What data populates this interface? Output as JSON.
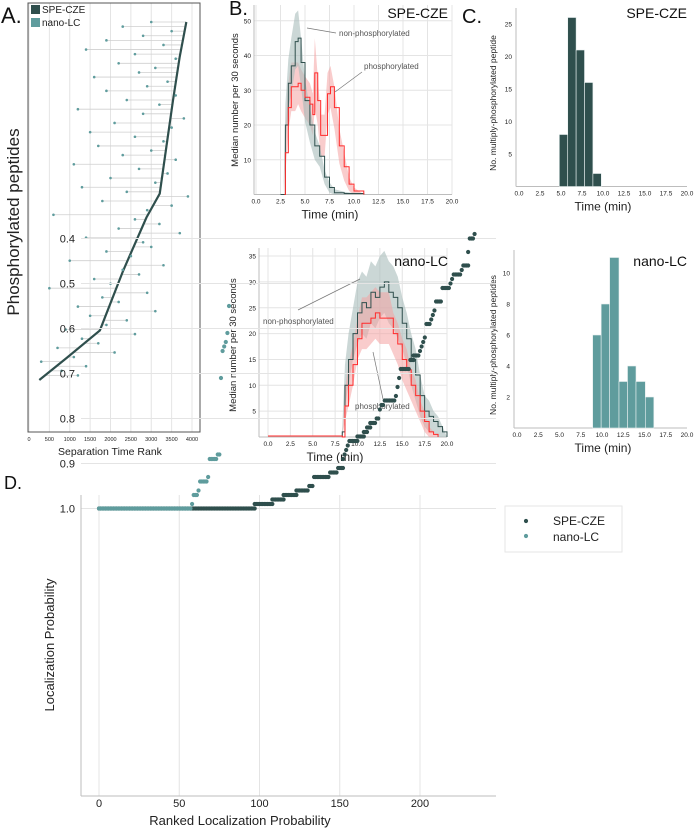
{
  "colors": {
    "spe_cze": "#2f4f4d",
    "nano_lc": "#5f9c9d",
    "phos_line": "#ff2a2a",
    "phos_band": "#f4a3a3",
    "nonphos_band": "#a9bcbb"
  },
  "chart_data": [
    {
      "id": "A",
      "type": "scatter",
      "panel_label": "A.",
      "xlabel": "Separation Time Rank",
      "ylabel": "Phosphorylated peptides",
      "xlim": [
        0,
        4200
      ],
      "xticks": [
        0,
        500,
        1000,
        1500,
        2000,
        2500,
        3000,
        3500,
        4000
      ],
      "legend": [
        {
          "name": "SPE-CZE"
        },
        {
          "name": "nano-LC"
        }
      ],
      "spe_cze_curve": {
        "peptide_index": [
          0,
          24,
          54,
          119,
          177,
          203,
          254,
          305,
          352,
          390
        ],
        "rank": [
          253,
          922,
          1739,
          2310,
          2882,
          3208,
          3371,
          3535,
          3698,
          3861
        ]
      },
      "nano_lc": {
        "peptide_index": [
          5,
          10,
          15,
          20,
          25,
          30,
          35,
          40,
          45,
          50,
          55,
          60,
          65,
          70,
          75,
          80,
          85,
          90,
          95,
          100,
          105,
          110,
          115,
          120,
          125,
          130,
          135,
          140,
          145,
          150,
          155,
          160,
          165,
          170,
          175,
          180,
          185,
          190,
          195,
          200,
          205,
          210,
          215,
          220,
          225,
          230,
          235,
          240,
          245,
          250,
          255,
          260,
          265,
          270,
          275,
          280,
          285,
          290,
          295,
          300,
          305,
          310,
          315,
          320,
          325,
          330,
          335,
          340,
          345,
          350,
          355,
          360,
          365,
          370,
          375,
          380,
          385,
          390
        ],
        "rank": [
          1200,
          800,
          1400,
          300,
          1100,
          2100,
          700,
          1700,
          1300,
          2600,
          900,
          1900,
          2400,
          1500,
          3100,
          1200,
          2200,
          1800,
          2900,
          500,
          2000,
          1600,
          2700,
          2300,
          3300,
          1000,
          2500,
          1900,
          3000,
          2800,
          1400,
          3700,
          2200,
          3200,
          2600,
          600,
          2900,
          3500,
          1800,
          3900,
          2400,
          1300,
          3100,
          2000,
          3400,
          2700,
          1100,
          3600,
          2300,
          3000,
          1700,
          3300,
          2600,
          1500,
          3500,
          2100,
          3800,
          2800,
          1200,
          3200,
          2400,
          3600,
          1900,
          2900,
          3400,
          1600,
          2700,
          3100,
          2200,
          3600,
          2600,
          1400,
          3300,
          1900,
          2800,
          3500,
          2300,
          3000
        ]
      }
    },
    {
      "id": "B1",
      "type": "line",
      "panel_label": "B.",
      "title": "SPE-CZE",
      "xlabel": "Time (min)",
      "ylabel": "Median number per 30 seconds",
      "xlim": [
        0,
        20
      ],
      "ylim": [
        0,
        52
      ],
      "xticks": [
        "0.0",
        "2.5",
        "5.0",
        "7.5",
        "10.0",
        "12.5",
        "15.0",
        "17.5",
        "20.0"
      ],
      "yticks": [
        10,
        20,
        30,
        40,
        50
      ],
      "annotations": [
        "non-phosphorylated",
        "phosphorylated"
      ],
      "series": [
        {
          "name": "non-phosphorylated",
          "t": [
            2.5,
            2.8,
            3.0,
            3.3,
            3.6,
            4.0,
            4.3,
            4.6,
            5.0,
            5.5,
            6.0,
            6.5,
            7.0,
            7.5,
            8.0,
            9.0,
            11.0
          ],
          "median": [
            0,
            0,
            20,
            32,
            37,
            44,
            45,
            38,
            27,
            20,
            14,
            11,
            5,
            2,
            0.5,
            0.3,
            0
          ],
          "band": [
            0,
            0,
            6,
            7,
            8,
            8,
            8,
            7,
            6,
            5,
            4,
            3,
            2,
            1.5,
            1,
            0.5,
            0
          ]
        },
        {
          "name": "phosphorylated",
          "t": [
            2.9,
            3.0,
            3.3,
            3.6,
            4.0,
            4.3,
            4.6,
            5.0,
            5.5,
            5.8,
            6.0,
            6.3,
            6.6,
            7.0,
            7.3,
            7.6,
            8.0,
            8.5,
            9.0,
            9.5,
            10.0,
            11.0
          ],
          "median": [
            0,
            12,
            25,
            31,
            31,
            32,
            30,
            28,
            26,
            23,
            35,
            27,
            17,
            17,
            29,
            31,
            25,
            14,
            8,
            3,
            1,
            0
          ],
          "band": [
            0,
            6,
            7,
            7,
            7,
            6,
            6,
            6,
            6,
            6,
            10,
            7,
            6,
            6,
            6,
            6,
            6,
            5,
            4,
            2,
            1,
            0
          ]
        }
      ]
    },
    {
      "id": "B2",
      "type": "line",
      "title": "nano-LC",
      "xlabel": "Time (min)",
      "ylabel": "Median number per 30 seconds",
      "xlim": [
        0,
        20
      ],
      "ylim": [
        0,
        37
      ],
      "xticks": [
        "0.0",
        "2.5",
        "5.0",
        "7.5",
        "10.0",
        "12.5",
        "15.0",
        "17.5",
        "20.0"
      ],
      "yticks": [
        5,
        10,
        15,
        20,
        25,
        30,
        35
      ],
      "annotations": [
        "non-phosphorylated",
        "phosphorylated"
      ],
      "series": [
        {
          "name": "non-phosphorylated",
          "t": [
            0,
            8.2,
            8.3,
            8.6,
            9.0,
            9.5,
            10.0,
            10.5,
            11.0,
            11.5,
            12.0,
            12.5,
            13.0,
            13.5,
            14.0,
            14.5,
            15.0,
            15.5,
            16.0,
            16.5,
            17.0,
            17.5,
            18.0,
            18.5,
            19.0,
            19.5,
            20.0
          ],
          "median": [
            0.2,
            0.2,
            1,
            10,
            15,
            20,
            24,
            26,
            25,
            28,
            27,
            29,
            30,
            28,
            27,
            25,
            22,
            19,
            15,
            12,
            8,
            5,
            4,
            3,
            2,
            1,
            0
          ],
          "band": [
            0,
            0,
            1,
            4,
            5,
            5,
            6,
            6,
            6,
            6,
            6,
            6,
            6,
            6,
            6,
            6,
            5,
            5,
            5,
            5,
            4,
            3,
            3,
            2,
            2,
            1,
            0
          ]
        },
        {
          "name": "phosphorylated",
          "t": [
            0,
            8.2,
            8.3,
            8.6,
            9.0,
            9.5,
            10.0,
            10.5,
            11.0,
            11.5,
            12.0,
            12.5,
            13.0,
            13.5,
            14.0,
            14.5,
            15.0,
            15.5,
            16.0,
            16.5,
            17.0,
            17.5,
            18.0,
            18.5,
            19.0
          ],
          "median": [
            0.2,
            0.2,
            0,
            6,
            10,
            14,
            19,
            22,
            22,
            23,
            24,
            23,
            23,
            23,
            20,
            18,
            15,
            13,
            10,
            8,
            5,
            3,
            1,
            0.5,
            0
          ],
          "band": [
            0,
            0,
            0,
            3,
            4,
            4,
            4,
            5,
            5,
            5,
            5,
            5,
            5,
            5,
            4,
            4,
            4,
            4,
            3,
            3,
            2,
            2,
            1,
            0.5,
            0
          ]
        }
      ]
    },
    {
      "id": "C1",
      "type": "bar",
      "panel_label": "C.",
      "title": "SPE-CZE",
      "xlabel": "Time (min)",
      "ylabel": "No. multiply-phosphorylated peptide",
      "xlim": [
        0,
        20
      ],
      "ylim": [
        0,
        27
      ],
      "xticks": [
        "0.0",
        "2.5",
        "5.0",
        "7.5",
        "10.0",
        "12.5",
        "15.0",
        "17.5",
        "20.0"
      ],
      "yticks": [
        5,
        10,
        15,
        20,
        25
      ],
      "bin_edges": [
        4.8,
        5.8,
        6.8,
        7.8,
        8.8,
        9.8
      ],
      "values": [
        8,
        26,
        21,
        16,
        2
      ]
    },
    {
      "id": "C2",
      "type": "bar",
      "title": "nano-LC",
      "xlabel": "Time (min)",
      "ylabel": "No. multiply-phosphorylated peptides",
      "xlim": [
        0,
        20
      ],
      "ylim": [
        0,
        11.5
      ],
      "xticks": [
        "0.0",
        "2.5",
        "5.0",
        "7.5",
        "10.0",
        "12.5",
        "15.0",
        "17.5",
        "20.0"
      ],
      "yticks": [
        2,
        4,
        6,
        8,
        10
      ],
      "bin_edges": [
        8.9,
        9.9,
        10.9,
        12.0,
        13.0,
        14.0,
        15.1,
        16.1
      ],
      "values": [
        6,
        8,
        11,
        3,
        4,
        3,
        2
      ]
    },
    {
      "id": "D",
      "type": "scatter",
      "panel_label": "D.",
      "xlabel": "Ranked Localization Probability",
      "ylabel": "Localization Probability",
      "xlim": [
        -10,
        245
      ],
      "ylim": [
        0.37,
        1.02
      ],
      "xticks": [
        0,
        50,
        100,
        150,
        200
      ],
      "yticks": [
        "0.4",
        "0.5",
        "0.6",
        "0.7",
        "0.8",
        "0.9",
        "1.0"
      ],
      "legend": "top-right outside",
      "series": [
        {
          "name": "SPE-CZE",
          "runs": [
            [
              0,
              97,
              1.0
            ],
            [
              97,
              108,
              0.99
            ],
            [
              108,
              115,
              0.98
            ],
            [
              115,
              123,
              0.97
            ],
            [
              123,
              130,
              0.96
            ],
            [
              131,
              133,
              0.95
            ],
            [
              134,
              143,
              0.93
            ],
            [
              144,
              148,
              0.92
            ],
            [
              149,
              152,
              0.91
            ],
            [
              152,
              152,
              0.89
            ],
            [
              153,
              153,
              0.88
            ],
            [
              154,
              154,
              0.87
            ],
            [
              155,
              155,
              0.86
            ],
            [
              156,
              161,
              0.85
            ],
            [
              161,
              165,
              0.84
            ],
            [
              165,
              167,
              0.83
            ],
            [
              167,
              169,
              0.82
            ],
            [
              169,
              172,
              0.81
            ],
            [
              173,
              174,
              0.8
            ],
            [
              175,
              175,
              0.78
            ],
            [
              176,
              177,
              0.77
            ],
            [
              178,
              184,
              0.76
            ],
            [
              185,
              185,
              0.75
            ],
            [
              186,
              186,
              0.73
            ],
            [
              187,
              187,
              0.71
            ],
            [
              188,
              193,
              0.69
            ],
            [
              194,
              196,
              0.67
            ],
            [
              196,
              199,
              0.66
            ],
            [
              200,
              200,
              0.65
            ],
            [
              201,
              201,
              0.64
            ],
            [
              202,
              202,
              0.63
            ],
            [
              203,
              203,
              0.62
            ],
            [
              204,
              206,
              0.59
            ],
            [
              207,
              207,
              0.58
            ],
            [
              208,
              208,
              0.57
            ],
            [
              209,
              209,
              0.56
            ],
            [
              210,
              213,
              0.54
            ],
            [
              214,
              218,
              0.51
            ],
            [
              219,
              219,
              0.5
            ],
            [
              220,
              220,
              0.49
            ],
            [
              221,
              225,
              0.48
            ],
            [
              226,
              226,
              0.47
            ],
            [
              227,
              230,
              0.46
            ],
            [
              230,
              230,
              0.43
            ],
            [
              231,
              233,
              0.4
            ],
            [
              234,
              234,
              0.39
            ]
          ]
        },
        {
          "name": "nano-LC",
          "runs": [
            [
              0,
              57,
              1.0
            ],
            [
              58,
              58,
              0.99
            ],
            [
              59,
              61,
              0.97
            ],
            [
              62,
              62,
              0.96
            ],
            [
              63,
              67,
              0.94
            ],
            [
              68,
              68,
              0.93
            ],
            [
              69,
              73,
              0.89
            ],
            [
              74,
              75,
              0.88
            ],
            [
              76,
              76,
              0.71
            ],
            [
              77,
              77,
              0.65
            ],
            [
              78,
              78,
              0.64
            ],
            [
              79,
              79,
              0.63
            ],
            [
              80,
              80,
              0.61
            ],
            [
              81,
              81,
              0.55
            ]
          ]
        }
      ]
    }
  ]
}
